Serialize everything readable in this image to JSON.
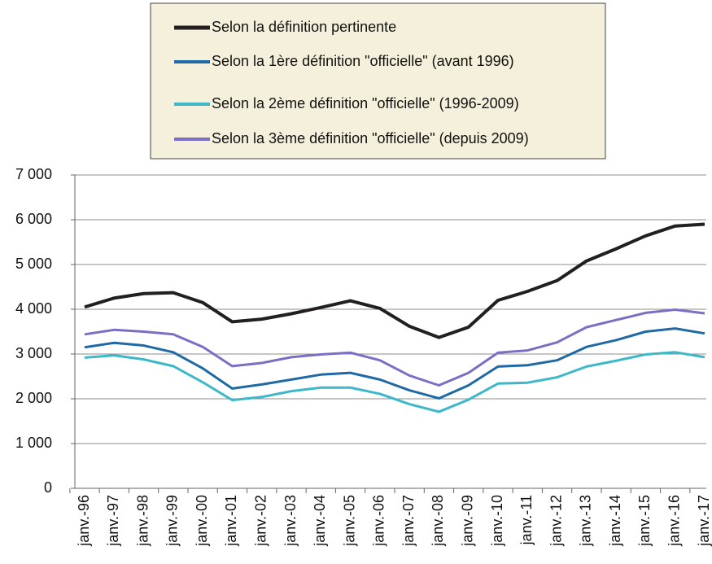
{
  "chart_data": {
    "type": "line",
    "categories": [
      "janv.-96",
      "janv.-97",
      "janv.-98",
      "janv.-99",
      "janv.-00",
      "janv.-01",
      "janv.-02",
      "janv.-03",
      "janv.-04",
      "janv.-05",
      "janv.-06",
      "janv.-07",
      "janv.-08",
      "janv.-09",
      "janv.-10",
      "janv.-11",
      "janv.-12",
      "janv.-13",
      "janv.-14",
      "janv.-15",
      "janv.-16",
      "janv.-17"
    ],
    "series": [
      {
        "name": "Selon la définition pertinente",
        "color": "#231f20",
        "width": 4,
        "values": [
          4050,
          4250,
          4350,
          4370,
          4150,
          3720,
          3780,
          3900,
          4040,
          4190,
          4020,
          3620,
          3370,
          3600,
          4200,
          4400,
          4640,
          5080,
          5350,
          5640,
          5860,
          5900
        ]
      },
      {
        "name": "Selon la 1ère définition \"officielle\" (avant 1996)",
        "color": "#1f6aa5",
        "width": 3,
        "values": [
          3150,
          3250,
          3190,
          3040,
          2680,
          2230,
          2320,
          2430,
          2540,
          2580,
          2430,
          2190,
          2010,
          2300,
          2720,
          2750,
          2860,
          3160,
          3310,
          3500,
          3570,
          3460
        ]
      },
      {
        "name": "Selon la 2ème définition \"officielle\" (1996-2009)",
        "color": "#3cb8c8",
        "width": 3,
        "values": [
          2920,
          2970,
          2880,
          2730,
          2370,
          1970,
          2040,
          2170,
          2250,
          2250,
          2110,
          1880,
          1710,
          1980,
          2340,
          2360,
          2480,
          2720,
          2850,
          2990,
          3040,
          2930
        ]
      },
      {
        "name": "Selon la 3ème définition \"officielle\" (depuis 2009)",
        "color": "#7b6fc4",
        "width": 3,
        "values": [
          3440,
          3540,
          3500,
          3440,
          3160,
          2730,
          2800,
          2930,
          2990,
          3030,
          2860,
          2520,
          2300,
          2580,
          3030,
          3080,
          3260,
          3600,
          3760,
          3920,
          3990,
          3910
        ]
      }
    ],
    "ylim": [
      0,
      7000
    ],
    "yticks": [
      0,
      {
        "value": 1000,
        "label": "1 000"
      },
      {
        "value": 2000,
        "label": "2 000"
      },
      {
        "value": 3000,
        "label": "3 000"
      },
      {
        "value": 4000,
        "label": "4 000"
      },
      {
        "value": 5000,
        "label": "5 000"
      },
      {
        "value": 6000,
        "label": "6 000"
      },
      {
        "value": 7000,
        "label": "7 000"
      }
    ],
    "grid": true,
    "legend": "top"
  }
}
